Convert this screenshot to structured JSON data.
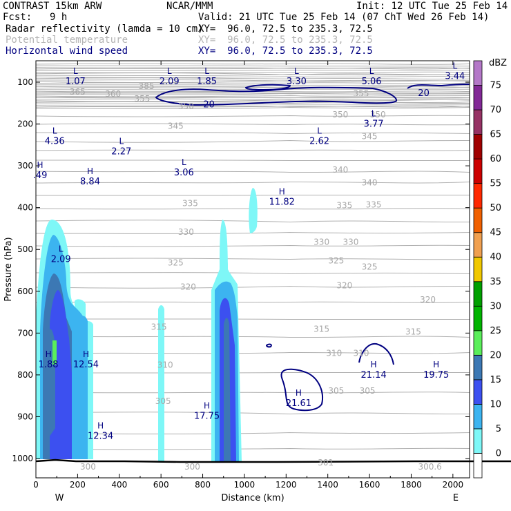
{
  "header": {
    "model": "CONTRAST 15km ARW",
    "center": "NCAR/MMM",
    "init": "Init: 12 UTC Tue 25 Feb 14",
    "fcst_label": "Fcst:",
    "fcst_value": "9 h",
    "valid": "Valid: 21 UTC Tue 25 Feb 14 (07 ChT Wed 26 Feb 14)",
    "fields": [
      {
        "name": "Radar reflectivity (lamda = 10 cm)",
        "xy": "XY=  96.0, 72.5 to 235.3, 72.5",
        "color": "#000000"
      },
      {
        "name": "Potential temperature",
        "xy": "XY=  96.0, 72.5 to 235.3, 72.5",
        "color": "#b4b4b4"
      },
      {
        "name": "Horizontal wind speed",
        "xy": "XY=  96.0, 72.5 to 235.3, 72.5",
        "color": "#000080"
      }
    ]
  },
  "chart_data": {
    "type": "cross-section",
    "xlabel": "Distance (km)",
    "ylabel": "Pressure (hPa)",
    "x_ticks": [
      0,
      200,
      400,
      600,
      800,
      1000,
      1200,
      1400,
      1600,
      1800,
      2000
    ],
    "y_ticks": [
      100,
      200,
      300,
      400,
      500,
      600,
      700,
      800,
      900,
      1000
    ],
    "xlim": [
      0,
      2080
    ],
    "ylim": [
      1050,
      50
    ],
    "edge_labels": {
      "left": "W",
      "right": "E"
    },
    "colorbar": {
      "unit": "dBZ",
      "ticks": [
        0,
        5,
        10,
        15,
        20,
        25,
        30,
        35,
        40,
        45,
        50,
        55,
        60,
        65,
        70,
        75
      ],
      "colors": [
        "#ffffff",
        "#7ef7f7",
        "#3cb4f0",
        "#3c50f0",
        "#3c78b4",
        "#5aee5a",
        "#00b400",
        "#00a000",
        "#f0c800",
        "#f0a050",
        "#f06000",
        "#ff2800",
        "#cc0000",
        "#a00000",
        "#963264",
        "#822896",
        "#b478c8"
      ]
    },
    "theta_labels": [
      {
        "text": "385",
        "x": 530,
        "p": 110
      },
      {
        "text": "365",
        "x": 200,
        "p": 123
      },
      {
        "text": "360",
        "x": 370,
        "p": 128
      },
      {
        "text": "355",
        "x": 510,
        "p": 140
      },
      {
        "text": "355",
        "x": 1560,
        "p": 127
      },
      {
        "text": "350",
        "x": 720,
        "p": 158
      },
      {
        "text": "350",
        "x": 1460,
        "p": 178
      },
      {
        "text": "350",
        "x": 1640,
        "p": 178
      },
      {
        "text": "345",
        "x": 670,
        "p": 205
      },
      {
        "text": "345",
        "x": 1600,
        "p": 230
      },
      {
        "text": "340",
        "x": 1460,
        "p": 310
      },
      {
        "text": "340",
        "x": 1600,
        "p": 340
      },
      {
        "text": "335",
        "x": 740,
        "p": 390
      },
      {
        "text": "335",
        "x": 1480,
        "p": 395
      },
      {
        "text": "335",
        "x": 1620,
        "p": 393
      },
      {
        "text": "330",
        "x": 720,
        "p": 458
      },
      {
        "text": "330",
        "x": 1370,
        "p": 482
      },
      {
        "text": "330",
        "x": 1510,
        "p": 482
      },
      {
        "text": "325",
        "x": 670,
        "p": 532
      },
      {
        "text": "325",
        "x": 1440,
        "p": 527
      },
      {
        "text": "325",
        "x": 1600,
        "p": 542
      },
      {
        "text": "320",
        "x": 730,
        "p": 590
      },
      {
        "text": "320",
        "x": 1480,
        "p": 586
      },
      {
        "text": "320",
        "x": 1880,
        "p": 620
      },
      {
        "text": "315",
        "x": 590,
        "p": 685
      },
      {
        "text": "315",
        "x": 1370,
        "p": 690
      },
      {
        "text": "315",
        "x": 1810,
        "p": 697
      },
      {
        "text": "310",
        "x": 620,
        "p": 776
      },
      {
        "text": "310",
        "x": 1430,
        "p": 748
      },
      {
        "text": "310",
        "x": 1560,
        "p": 748
      },
      {
        "text": "305",
        "x": 610,
        "p": 863
      },
      {
        "text": "305",
        "x": 1440,
        "p": 838
      },
      {
        "text": "305",
        "x": 1590,
        "p": 838
      },
      {
        "text": "300",
        "x": 250,
        "p": 1020
      },
      {
        "text": "300",
        "x": 750,
        "p": 1020
      },
      {
        "text": "301",
        "x": 1390,
        "p": 1010
      },
      {
        "text": "300.6",
        "x": 1890,
        "p": 1020
      }
    ],
    "extrema": [
      {
        "type": "L",
        "value": "1.07",
        "x": 190,
        "p": 80
      },
      {
        "type": "L",
        "value": "2.09",
        "x": 640,
        "p": 80
      },
      {
        "type": "L",
        "value": "1.85",
        "x": 820,
        "p": 80
      },
      {
        "type": "L",
        "value": "3.30",
        "x": 1250,
        "p": 80
      },
      {
        "type": "L",
        "value": "5.06",
        "x": 1610,
        "p": 80
      },
      {
        "type": "L",
        "value": "3.44",
        "x": 2010,
        "p": 68
      },
      {
        "type": "L",
        "value": "3.77",
        "x": 1620,
        "p": 182
      },
      {
        "type": "L",
        "value": "4.36",
        "x": 90,
        "p": 223
      },
      {
        "type": "L",
        "value": "2.27",
        "x": 410,
        "p": 248
      },
      {
        "type": "L",
        "value": "2.62",
        "x": 1360,
        "p": 223
      },
      {
        "type": "L",
        "value": "3.06",
        "x": 710,
        "p": 298
      },
      {
        "type": "H",
        "value": "8.84",
        "x": 260,
        "p": 320
      },
      {
        "type": "H",
        "value": ".49",
        "x": 20,
        "p": 305
      },
      {
        "type": "H",
        "value": "11.82",
        "x": 1180,
        "p": 368
      },
      {
        "type": "L",
        "value": "2.09",
        "x": 120,
        "p": 505
      },
      {
        "type": "H",
        "value": "1.88",
        "x": 60,
        "p": 757
      },
      {
        "type": "H",
        "value": "12.54",
        "x": 240,
        "p": 757
      },
      {
        "type": "H",
        "value": "21.14",
        "x": 1620,
        "p": 782
      },
      {
        "type": "H",
        "value": "19.75",
        "x": 1920,
        "p": 782
      },
      {
        "type": "H",
        "value": "21.61",
        "x": 1260,
        "p": 850
      },
      {
        "type": "H",
        "value": "17.75",
        "x": 820,
        "p": 880
      },
      {
        "type": "H",
        "value": "12.34",
        "x": 310,
        "p": 928
      }
    ],
    "wind_speed_labels": [
      {
        "text": "20",
        "x": 830,
        "p": 152
      },
      {
        "text": "20",
        "x": 1860,
        "p": 125
      }
    ]
  }
}
